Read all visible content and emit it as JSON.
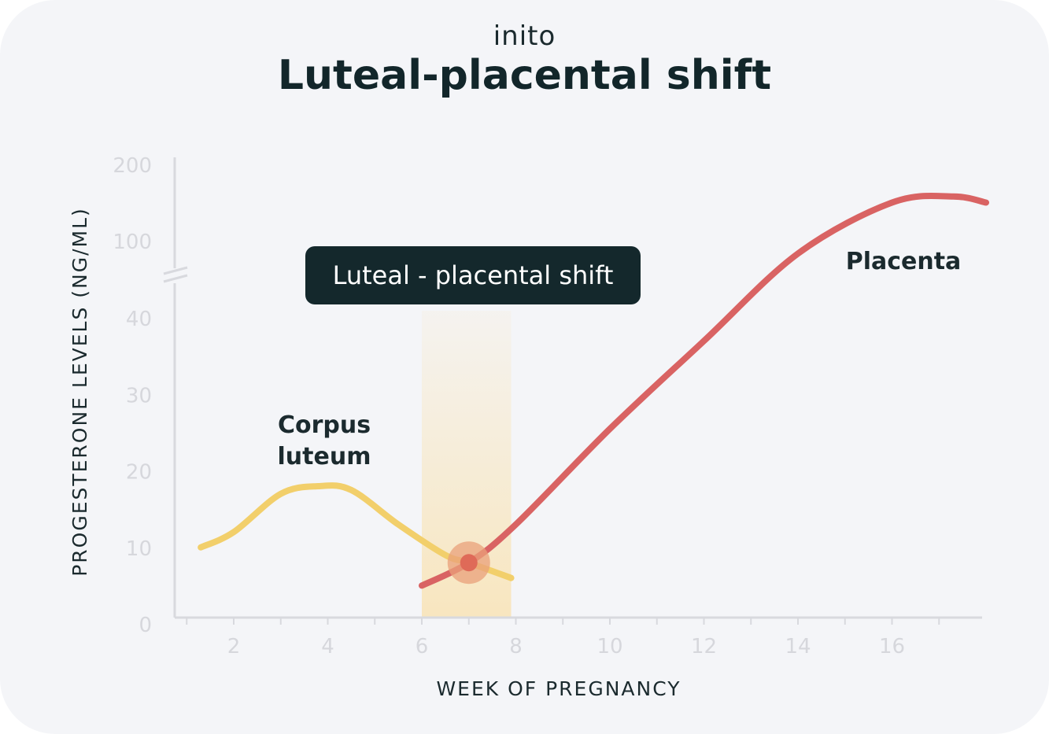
{
  "brand": "inito",
  "title": "Luteal-placental shift",
  "colors": {
    "background": "#f4f5f8",
    "corpus_luteum": "#f2cf6b",
    "placenta": "#d96363",
    "shift_band": "#f8e6bf",
    "callout_bg": "#14282c",
    "axis": "#d8d9de"
  },
  "chart_data": {
    "type": "line",
    "xlabel": "WEEK OF PREGNANCY",
    "ylabel": "PROGESTERONE LEVELS (NG/ML)",
    "x_ticks": [
      "2",
      "4",
      "6",
      "8",
      "10",
      "12",
      "14",
      "16"
    ],
    "y_ticks": [
      "0",
      "10",
      "20",
      "30",
      "40",
      "100",
      "200"
    ],
    "y_axis_break": "between 40 and 100",
    "xlim": [
      0.8,
      18
    ],
    "grid": false,
    "series": [
      {
        "name": "Corpus luteum",
        "label_lines": [
          "Corpus",
          "luteum"
        ],
        "color": "#f2cf6b",
        "x": [
          1.3,
          2,
          3,
          3.8,
          4.5,
          5.5,
          6.5,
          7.0,
          7.9
        ],
        "y": [
          10,
          12,
          17,
          18,
          17.5,
          13,
          9,
          8,
          6
        ]
      },
      {
        "name": "Placenta",
        "label_lines": [
          "Placenta"
        ],
        "color": "#d96363",
        "x": [
          6.0,
          7.0,
          8,
          10,
          12,
          14,
          16,
          17.3,
          18
        ],
        "y": [
          5,
          8,
          13,
          25.5,
          37,
          90,
          150,
          158,
          150
        ]
      }
    ],
    "shaded_region": {
      "x": [
        6,
        7.9
      ],
      "label": "Luteal - placental shift"
    },
    "highlight_point": {
      "x": 7,
      "y": 8
    }
  }
}
